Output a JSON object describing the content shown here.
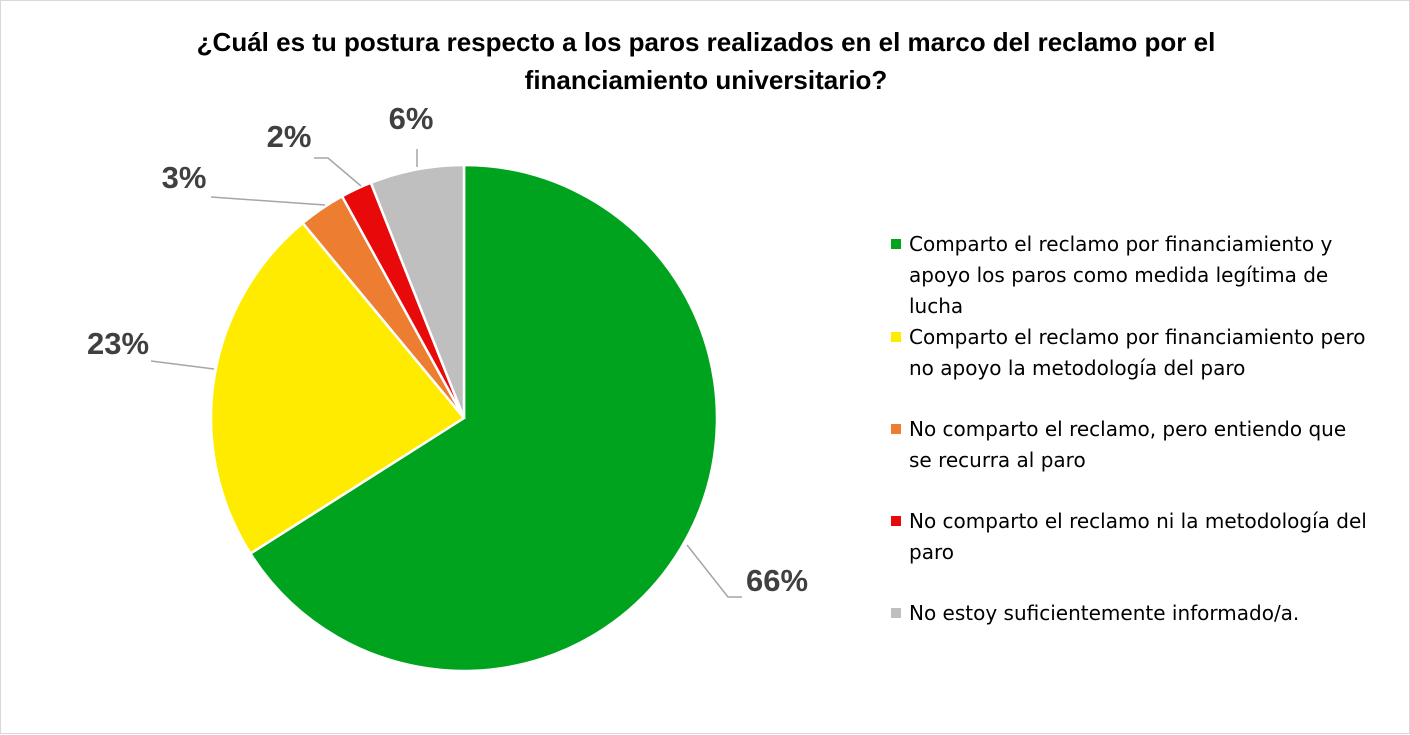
{
  "title": "¿Cuál es tu postura respecto a los paros realizados en el marco del reclamo por el financiamiento universitario?",
  "chart_data": {
    "type": "pie",
    "title": "¿Cuál es tu postura respecto a los paros realizados en el marco del reclamo por el financiamiento universitario?",
    "legend_position": "right",
    "slices": [
      {
        "label": "Comparto el reclamo por financiamiento y apoyo los paros como medida legítima de lucha",
        "value": 66,
        "display": "66%",
        "color": "#00A31E"
      },
      {
        "label": "Comparto el reclamo por financiamiento pero no apoyo la metodología del paro",
        "value": 23,
        "display": "23%",
        "color": "#FFEB00"
      },
      {
        "label": "No comparto el reclamo, pero entiendo que se recurra al paro",
        "value": 3,
        "display": "3%",
        "color": "#ED7D31"
      },
      {
        "label": "No comparto el reclamo ni la metodología del paro",
        "value": 2,
        "display": "2%",
        "color": "#E80A0A"
      },
      {
        "label": "No estoy suficientemente informado/a.",
        "value": 6,
        "display": "6%",
        "color": "#BFBFBF"
      }
    ]
  }
}
